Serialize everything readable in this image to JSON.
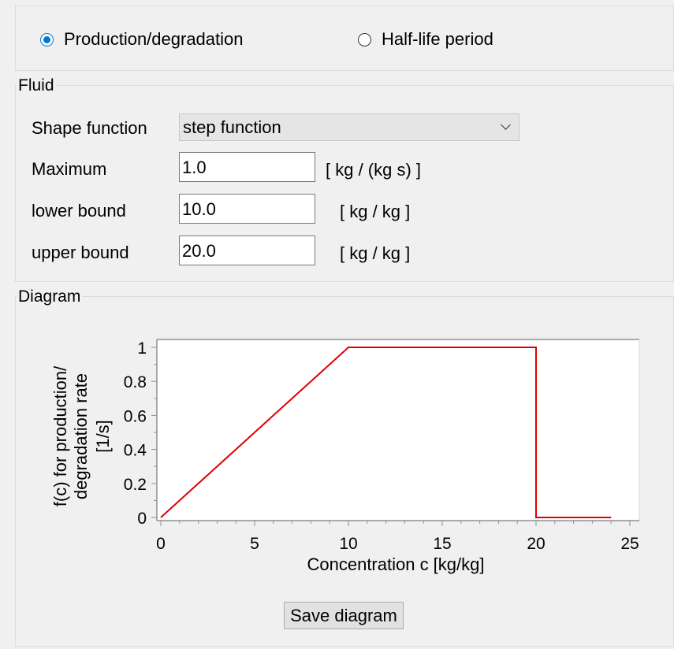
{
  "mode": {
    "options": [
      {
        "label": "Production/degradation",
        "checked": true
      },
      {
        "label": "Half-life period",
        "checked": false
      }
    ]
  },
  "fluid": {
    "title": "Fluid",
    "shape_label": "Shape function",
    "shape_value": "step function",
    "maximum_label": "Maximum",
    "maximum_value": "1.0",
    "maximum_unit": "[ kg / (kg s) ]",
    "lower_label": "lower bound",
    "lower_value": "10.0",
    "lower_unit": "[ kg / kg ]",
    "upper_label": "upper bound",
    "upper_value": "20.0",
    "upper_unit": "[ kg / kg ]"
  },
  "diagram": {
    "title": "Diagram",
    "save_label": "Save diagram"
  },
  "chart_data": {
    "type": "line",
    "xlabel": "Concentration c [kg/kg]",
    "ylabel_lines": [
      "f(c) for production/",
      "degradation rate",
      "[1/s]"
    ],
    "xlim": [
      0,
      25
    ],
    "ylim": [
      0,
      1
    ],
    "x_ticks": [
      0,
      5,
      10,
      15,
      20,
      25
    ],
    "y_ticks": [
      0,
      0.2,
      0.4,
      0.6,
      0.8,
      1
    ],
    "y_tick_labels": [
      "0",
      "0.2",
      "0.4",
      "0.6",
      "0.8",
      "1"
    ],
    "series_color": "#e00000",
    "series": [
      {
        "x": [
          0,
          1,
          2,
          3,
          4,
          5,
          6,
          7,
          8,
          9,
          10,
          11,
          12,
          13,
          14,
          15,
          16,
          17,
          18,
          19,
          20,
          20,
          21,
          22,
          23,
          24
        ],
        "y": [
          0,
          0.1,
          0.2,
          0.3,
          0.4,
          0.5,
          0.6,
          0.7,
          0.8,
          0.9,
          1,
          1,
          1,
          1,
          1,
          1,
          1,
          1,
          1,
          1,
          1,
          0,
          0,
          0,
          0,
          0
        ]
      }
    ]
  }
}
